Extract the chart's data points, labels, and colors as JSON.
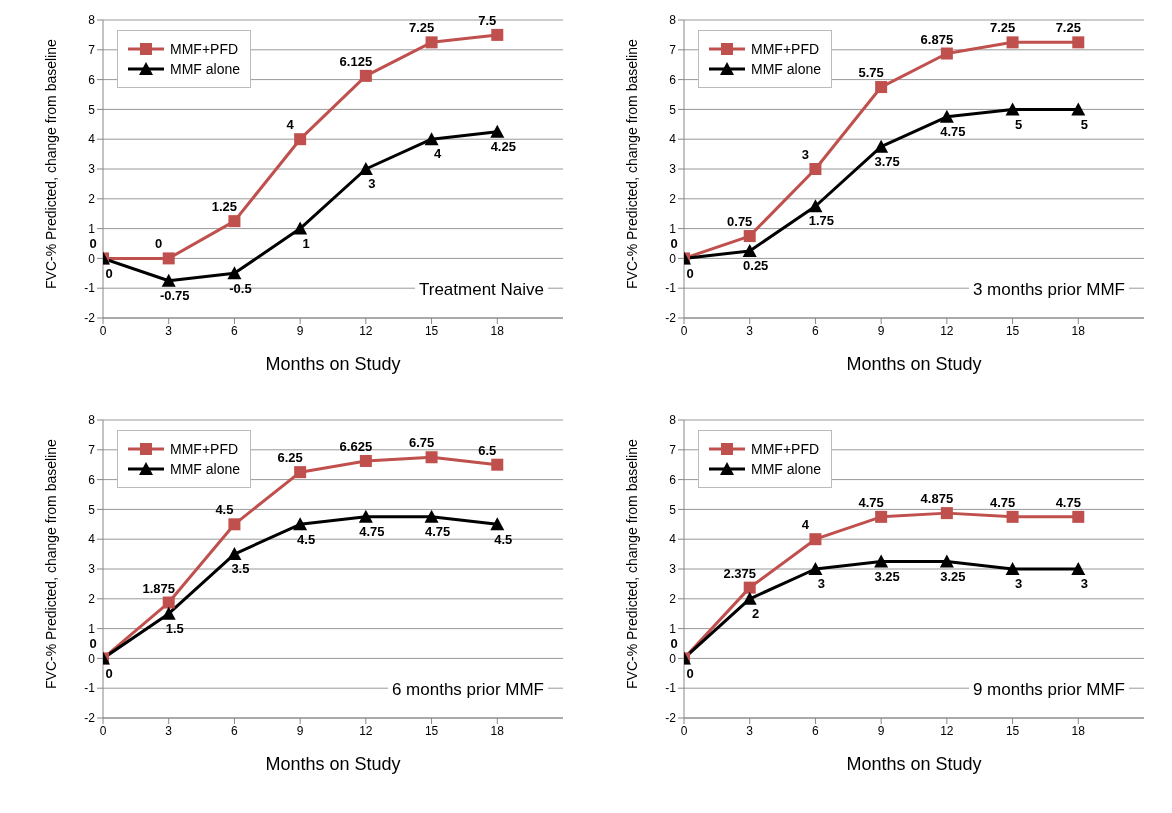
{
  "chart_data": [
    {
      "type": "line",
      "title": null,
      "annotations": [
        "Treatment Naive"
      ],
      "xlabel": "Months on Study",
      "ylabel": "FVC-% Predicted, change from baseline",
      "x": [
        0,
        3,
        6,
        9,
        12,
        15,
        18
      ],
      "xlim": [
        0,
        21
      ],
      "xticks": [
        0,
        3,
        6,
        9,
        12,
        15,
        18
      ],
      "ylim": [
        -2,
        8
      ],
      "yticks": [
        -2,
        -1,
        0,
        1,
        2,
        3,
        4,
        5,
        6,
        7,
        8
      ],
      "grid": "y",
      "legend": "top left",
      "data_labels": true,
      "series": [
        {
          "name": "MMF+PFD",
          "color": "#c0504d",
          "marker": "square",
          "values": [
            0,
            0,
            1.25,
            4,
            6.125,
            7.25,
            7.5
          ]
        },
        {
          "name": "MMF alone",
          "color": "#000000",
          "marker": "triangle",
          "values": [
            0,
            -0.75,
            -0.5,
            1,
            3,
            4,
            4.25
          ]
        }
      ]
    },
    {
      "type": "line",
      "annotations": [
        "3 months prior MMF"
      ],
      "xlabel": "Months on Study",
      "ylabel": "FVC-% Predicted, change from baseline",
      "x": [
        0,
        3,
        6,
        9,
        12,
        15,
        18
      ],
      "xlim": [
        0,
        21
      ],
      "xticks": [
        0,
        3,
        6,
        9,
        12,
        15,
        18
      ],
      "ylim": [
        -2,
        8
      ],
      "yticks": [
        -2,
        -1,
        0,
        1,
        2,
        3,
        4,
        5,
        6,
        7,
        8
      ],
      "grid": "y",
      "legend": "top left",
      "data_labels": true,
      "series": [
        {
          "name": "MMF+PFD",
          "color": "#c0504d",
          "marker": "square",
          "values": [
            0,
            0.75,
            3,
            5.75,
            6.875,
            7.25,
            7.25
          ]
        },
        {
          "name": "MMF alone",
          "color": "#000000",
          "marker": "triangle",
          "values": [
            0,
            0.25,
            1.75,
            3.75,
            4.75,
            5,
            5
          ]
        }
      ]
    },
    {
      "type": "line",
      "annotations": [
        "6 months prior MMF"
      ],
      "xlabel": "Months on Study",
      "ylabel": "FVC-% Predicted, change from baseline",
      "x": [
        0,
        3,
        6,
        9,
        12,
        15,
        18
      ],
      "xlim": [
        0,
        21
      ],
      "xticks": [
        0,
        3,
        6,
        9,
        12,
        15,
        18
      ],
      "ylim": [
        -2,
        8
      ],
      "yticks": [
        -2,
        -1,
        0,
        1,
        2,
        3,
        4,
        5,
        6,
        7,
        8
      ],
      "grid": "y",
      "legend": "top left",
      "data_labels": true,
      "series": [
        {
          "name": "MMF+PFD",
          "color": "#c0504d",
          "marker": "square",
          "values": [
            0,
            1.875,
            4.5,
            6.25,
            6.625,
            6.75,
            6.5
          ]
        },
        {
          "name": "MMF alone",
          "color": "#000000",
          "marker": "triangle",
          "values": [
            0,
            1.5,
            3.5,
            4.5,
            4.75,
            4.75,
            4.5
          ]
        }
      ]
    },
    {
      "type": "line",
      "annotations": [
        "9 months prior MMF"
      ],
      "xlabel": "Months on Study",
      "ylabel": "FVC-% Predicted, change from baseline",
      "x": [
        0,
        3,
        6,
        9,
        12,
        15,
        18
      ],
      "xlim": [
        0,
        21
      ],
      "xticks": [
        0,
        3,
        6,
        9,
        12,
        15,
        18
      ],
      "ylim": [
        -2,
        8
      ],
      "yticks": [
        -2,
        -1,
        0,
        1,
        2,
        3,
        4,
        5,
        6,
        7,
        8
      ],
      "grid": "y",
      "legend": "top left",
      "data_labels": true,
      "series": [
        {
          "name": "MMF+PFD",
          "color": "#c0504d",
          "marker": "square",
          "values": [
            0,
            2.375,
            4,
            4.75,
            4.875,
            4.75,
            4.75
          ]
        },
        {
          "name": "MMF alone",
          "color": "#000000",
          "marker": "triangle",
          "values": [
            0,
            2,
            3,
            3.25,
            3.25,
            3,
            3
          ]
        }
      ]
    }
  ]
}
